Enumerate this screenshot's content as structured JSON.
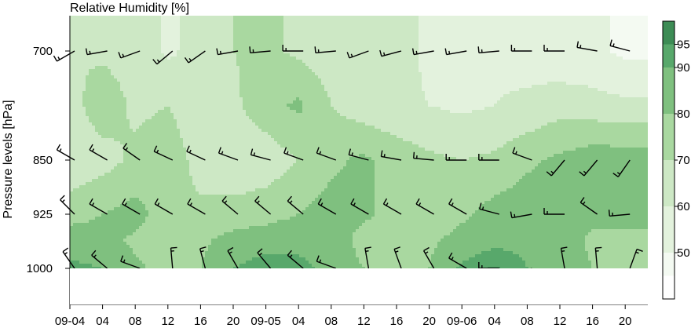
{
  "chart_data": {
    "type": "heatmap",
    "title": "Relative Humidity [%]",
    "ylabel": "Pressure levels [hPa]",
    "y_ticks": [
      700,
      850,
      925,
      1000
    ],
    "x_ticks": [
      "09-04",
      "04",
      "08",
      "12",
      "16",
      "20",
      "09-05",
      "04",
      "08",
      "12",
      "16",
      "20",
      "09-06",
      "04",
      "08",
      "12",
      "16",
      "20"
    ],
    "colorbar": {
      "ticks": [
        50,
        60,
        70,
        80,
        90,
        95
      ],
      "bounds": [
        40,
        45,
        50,
        60,
        70,
        80,
        90,
        95,
        100
      ],
      "colors": [
        "#ffffff",
        "#f4faf2",
        "#e3f2dd",
        "#cde8c5",
        "#a9d8a0",
        "#7fc07f",
        "#58a86b",
        "#3d8c55"
      ]
    },
    "levels_hPa": [
      700,
      850,
      925,
      1000
    ],
    "times_hours": [
      0,
      4,
      8,
      12,
      16,
      20,
      24,
      28,
      32,
      36,
      40,
      44,
      48,
      52,
      56,
      60,
      64,
      68
    ],
    "rh_grid": {
      "700": [
        70,
        68,
        66,
        58,
        64,
        70,
        72,
        68,
        64,
        62,
        64,
        58,
        56,
        58,
        56,
        52,
        52,
        48
      ],
      "775": [
        66,
        76,
        68,
        70,
        64,
        68,
        76,
        82,
        70,
        64,
        62,
        60,
        58,
        60,
        62,
        66,
        64,
        62
      ],
      "850": [
        62,
        66,
        72,
        76,
        66,
        62,
        64,
        70,
        78,
        82,
        76,
        72,
        70,
        72,
        78,
        82,
        86,
        86
      ],
      "925": [
        76,
        80,
        84,
        74,
        72,
        74,
        76,
        80,
        84,
        82,
        76,
        72,
        78,
        84,
        86,
        84,
        82,
        84
      ],
      "962": [
        86,
        84,
        78,
        74,
        78,
        84,
        86,
        88,
        86,
        76,
        74,
        78,
        84,
        88,
        88,
        86,
        78,
        76
      ],
      "1000": [
        92,
        90,
        82,
        76,
        80,
        90,
        94,
        92,
        88,
        80,
        76,
        80,
        92,
        96,
        90,
        86,
        80,
        78
      ]
    },
    "wind_barbs": {
      "700": [
        [
          240,
          10
        ],
        [
          260,
          10
        ],
        [
          250,
          10
        ],
        [
          230,
          10
        ],
        [
          235,
          10
        ],
        [
          260,
          10
        ],
        [
          265,
          10
        ],
        [
          270,
          10
        ],
        [
          265,
          10
        ],
        [
          250,
          10
        ],
        [
          255,
          10
        ],
        [
          260,
          10
        ],
        [
          260,
          10
        ],
        [
          265,
          10
        ],
        [
          270,
          10
        ],
        [
          270,
          10
        ],
        [
          280,
          10
        ],
        [
          285,
          10
        ]
      ],
      "850": [
        [
          300,
          10
        ],
        [
          300,
          10
        ],
        [
          305,
          10
        ],
        [
          295,
          10
        ],
        [
          295,
          10
        ],
        [
          290,
          10
        ],
        [
          285,
          10
        ],
        [
          290,
          10
        ],
        [
          290,
          10
        ],
        [
          285,
          10
        ],
        [
          280,
          10
        ],
        [
          275,
          10
        ],
        [
          270,
          10
        ],
        [
          270,
          10
        ],
        [
          290,
          10
        ],
        [
          220,
          10
        ],
        [
          220,
          10
        ],
        [
          215,
          10
        ]
      ],
      "925": [
        [
          315,
          10
        ],
        [
          300,
          10
        ],
        [
          300,
          10
        ],
        [
          300,
          10
        ],
        [
          300,
          10
        ],
        [
          310,
          10
        ],
        [
          310,
          10
        ],
        [
          310,
          10
        ],
        [
          300,
          10
        ],
        [
          300,
          10
        ],
        [
          300,
          10
        ],
        [
          300,
          10
        ],
        [
          300,
          10
        ],
        [
          285,
          10
        ],
        [
          260,
          10
        ],
        [
          270,
          10
        ],
        [
          305,
          10
        ],
        [
          265,
          10
        ]
      ],
      "1000": [
        [
          325,
          10
        ],
        [
          310,
          10
        ],
        [
          290,
          10
        ],
        [
          355,
          10
        ],
        [
          345,
          10
        ],
        [
          330,
          10
        ],
        [
          320,
          10
        ],
        [
          310,
          10
        ],
        [
          290,
          10
        ],
        [
          350,
          10
        ],
        [
          340,
          10
        ],
        [
          330,
          10
        ],
        [
          300,
          10
        ],
        [
          270,
          10
        ],
        [
          250,
          10
        ],
        [
          350,
          10
        ],
        [
          355,
          10
        ],
        [
          20,
          10
        ]
      ]
    }
  }
}
